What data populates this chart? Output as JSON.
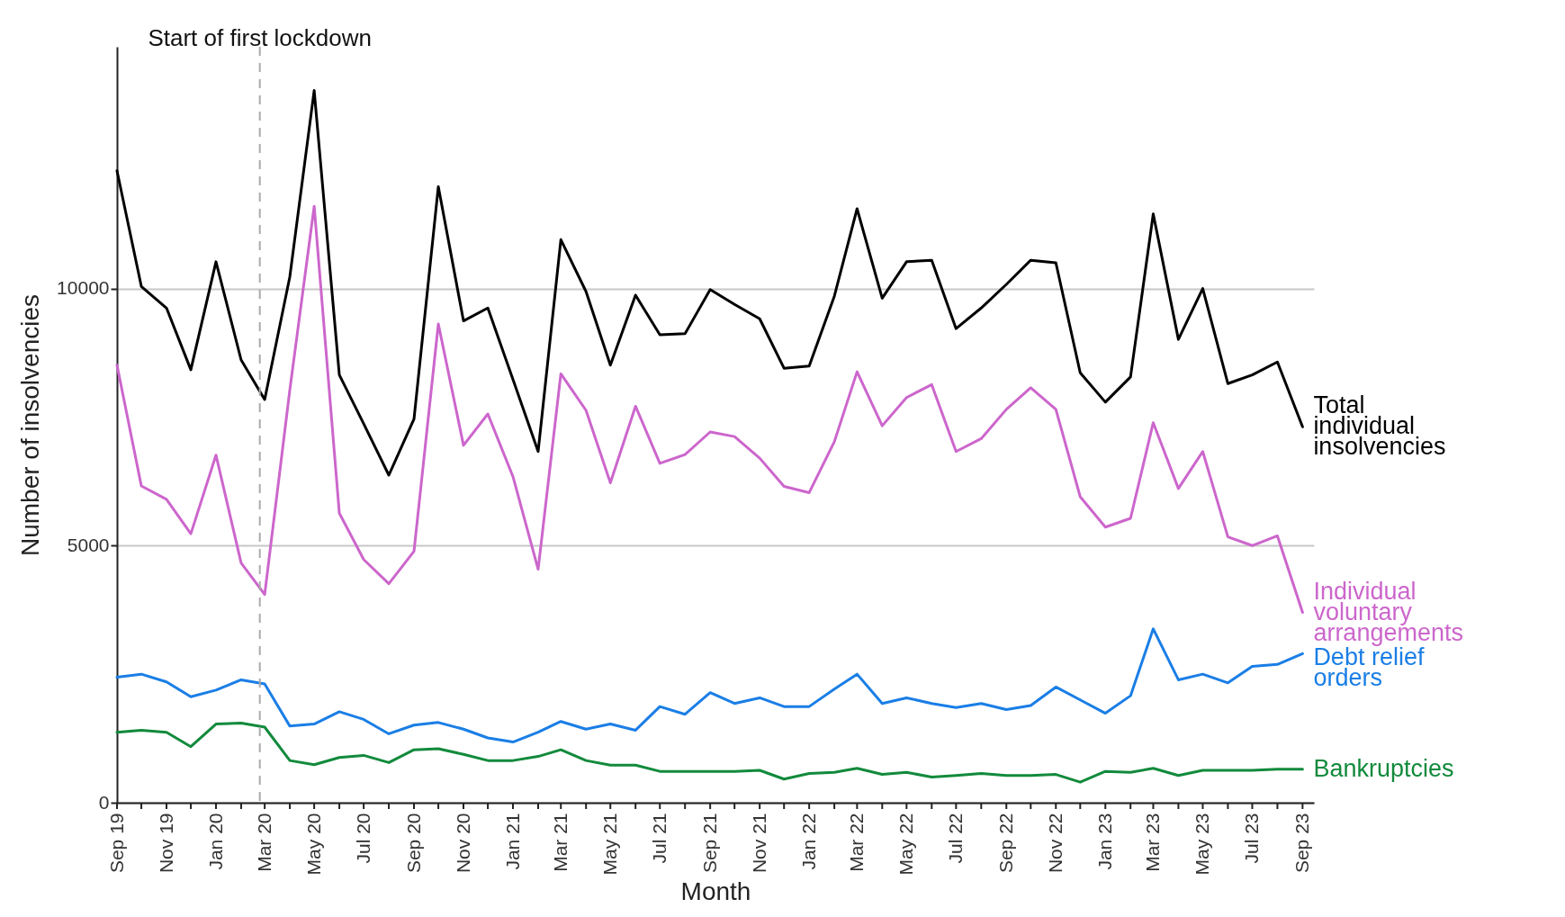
{
  "chart_data": {
    "type": "line",
    "xlabel": "Month",
    "ylabel": "Number of insolvencies",
    "x": [
      "2019-09",
      "2019-10",
      "2019-11",
      "2019-12",
      "2020-01",
      "2020-02",
      "2020-03",
      "2020-04",
      "2020-05",
      "2020-06",
      "2020-07",
      "2020-08",
      "2020-09",
      "2020-10",
      "2020-11",
      "2020-12",
      "2021-01",
      "2021-02",
      "2021-03",
      "2021-04",
      "2021-05",
      "2021-06",
      "2021-07",
      "2021-08",
      "2021-09",
      "2021-10",
      "2021-11",
      "2021-12",
      "2022-01",
      "2022-02",
      "2022-03",
      "2022-04",
      "2022-05",
      "2022-06",
      "2022-07",
      "2022-08",
      "2022-09",
      "2022-10",
      "2022-11",
      "2022-12",
      "2023-01",
      "2023-02",
      "2023-03",
      "2023-04",
      "2023-05",
      "2023-06",
      "2023-07",
      "2023-08",
      "2023-09"
    ],
    "series": [
      {
        "name": "Total individual insolvencies",
        "color": "#000000",
        "values": [
          12290,
          10040,
          9620,
          8420,
          10520,
          8610,
          7840,
          10230,
          13850,
          8320,
          7370,
          6370,
          7460,
          11980,
          9370,
          9620,
          8230,
          6830,
          10950,
          9940,
          8510,
          9870,
          9100,
          9120,
          9980,
          9690,
          9410,
          8450,
          8490,
          9850,
          11550,
          9810,
          10520,
          10550,
          9220,
          9620,
          10080,
          10550,
          10500,
          8360,
          7790,
          8280,
          11450,
          9010,
          10000,
          8150,
          8320,
          8570,
          7310
        ]
      },
      {
        "name": "Individual voluntary arrangements",
        "color": "#cc66cc",
        "values": [
          8510,
          6160,
          5900,
          5230,
          6760,
          4660,
          4050,
          8030,
          11600,
          5630,
          4730,
          4260,
          4890,
          9310,
          6950,
          7560,
          6340,
          4540,
          8340,
          7630,
          6220,
          7710,
          6600,
          6770,
          7210,
          7120,
          6700,
          6150,
          6030,
          7020,
          8380,
          7330,
          7880,
          8130,
          6830,
          7080,
          7650,
          8070,
          7650,
          5950,
          5360,
          5530,
          7390,
          6110,
          6830,
          5170,
          5000,
          5190,
          3700
        ]
      },
      {
        "name": "Debt relief orders",
        "color": "#1a7ee6",
        "values": [
          2440,
          2500,
          2350,
          2060,
          2190,
          2390,
          2310,
          1490,
          1530,
          1770,
          1620,
          1340,
          1510,
          1560,
          1430,
          1260,
          1180,
          1370,
          1580,
          1430,
          1530,
          1410,
          1870,
          1720,
          2140,
          1930,
          2040,
          1870,
          1870,
          2210,
          2500,
          1930,
          2040,
          1930,
          1850,
          1930,
          1810,
          1890,
          2250,
          2000,
          1740,
          2080,
          3380,
          2390,
          2500,
          2330,
          2650,
          2690,
          2900
        ]
      },
      {
        "name": "Bankruptcies",
        "color": "#128a3c",
        "values": [
          1370,
          1410,
          1370,
          1090,
          1530,
          1550,
          1470,
          820,
          740,
          880,
          920,
          780,
          1030,
          1050,
          940,
          820,
          820,
          900,
          1030,
          820,
          730,
          730,
          610,
          610,
          610,
          610,
          630,
          460,
          570,
          590,
          670,
          550,
          590,
          500,
          530,
          570,
          530,
          530,
          550,
          400,
          610,
          590,
          670,
          530,
          630,
          630,
          630,
          650,
          650
        ]
      }
    ],
    "xlim": [
      "2019-09",
      "2023-09-15"
    ],
    "xticks": [
      {
        "value": "2019-09",
        "label": "Sep 19"
      },
      {
        "value": "2019-10",
        "label": null
      },
      {
        "value": "2019-11",
        "label": "Nov 19"
      },
      {
        "value": "2019-12",
        "label": null
      },
      {
        "value": "2020-01",
        "label": "Jan 20"
      },
      {
        "value": "2020-02",
        "label": null
      },
      {
        "value": "2020-03",
        "label": "Mar 20"
      },
      {
        "value": "2020-04",
        "label": null
      },
      {
        "value": "2020-05",
        "label": "May 20"
      },
      {
        "value": "2020-06",
        "label": null
      },
      {
        "value": "2020-07",
        "label": "Jul 20"
      },
      {
        "value": "2020-08",
        "label": null
      },
      {
        "value": "2020-09",
        "label": "Sep 20"
      },
      {
        "value": "2020-10",
        "label": null
      },
      {
        "value": "2020-11",
        "label": "Nov 20"
      },
      {
        "value": "2020-12",
        "label": null
      },
      {
        "value": "2021-01",
        "label": "Jan 21"
      },
      {
        "value": "2021-02",
        "label": null
      },
      {
        "value": "2021-03",
        "label": "Mar 21"
      },
      {
        "value": "2021-04",
        "label": null
      },
      {
        "value": "2021-05",
        "label": "May 21"
      },
      {
        "value": "2021-06",
        "label": null
      },
      {
        "value": "2021-07",
        "label": "Jul 21"
      },
      {
        "value": "2021-08",
        "label": null
      },
      {
        "value": "2021-09",
        "label": "Sep 21"
      },
      {
        "value": "2021-10",
        "label": null
      },
      {
        "value": "2021-11",
        "label": "Nov 21"
      },
      {
        "value": "2021-12",
        "label": null
      },
      {
        "value": "2022-01",
        "label": "Jan 22"
      },
      {
        "value": "2022-02",
        "label": null
      },
      {
        "value": "2022-03",
        "label": "Mar 22"
      },
      {
        "value": "2022-04",
        "label": null
      },
      {
        "value": "2022-05",
        "label": "May 22"
      },
      {
        "value": "2022-06",
        "label": null
      },
      {
        "value": "2022-07",
        "label": "Jul 22"
      },
      {
        "value": "2022-08",
        "label": null
      },
      {
        "value": "2022-09",
        "label": "Sep 22"
      },
      {
        "value": "2022-10",
        "label": null
      },
      {
        "value": "2022-11",
        "label": "Nov 22"
      },
      {
        "value": "2022-12",
        "label": null
      },
      {
        "value": "2023-01",
        "label": "Jan 23"
      },
      {
        "value": "2023-02",
        "label": null
      },
      {
        "value": "2023-03",
        "label": "Mar 23"
      },
      {
        "value": "2023-04",
        "label": null
      },
      {
        "value": "2023-05",
        "label": "May 23"
      },
      {
        "value": "2023-06",
        "label": null
      },
      {
        "value": "2023-07",
        "label": "Jul 23"
      },
      {
        "value": "2023-08",
        "label": null
      },
      {
        "value": "2023-09",
        "label": "Sep 23"
      }
    ],
    "ylim": [
      0,
      14700
    ],
    "yticks": [
      0,
      5000,
      10000
    ],
    "grid": "y",
    "ref_lines": [
      {
        "axis": "x",
        "value": "2020-02-24",
        "label": "Start of first lockdown",
        "color": "#aaaaaa",
        "line_style": "dashed"
      }
    ]
  }
}
